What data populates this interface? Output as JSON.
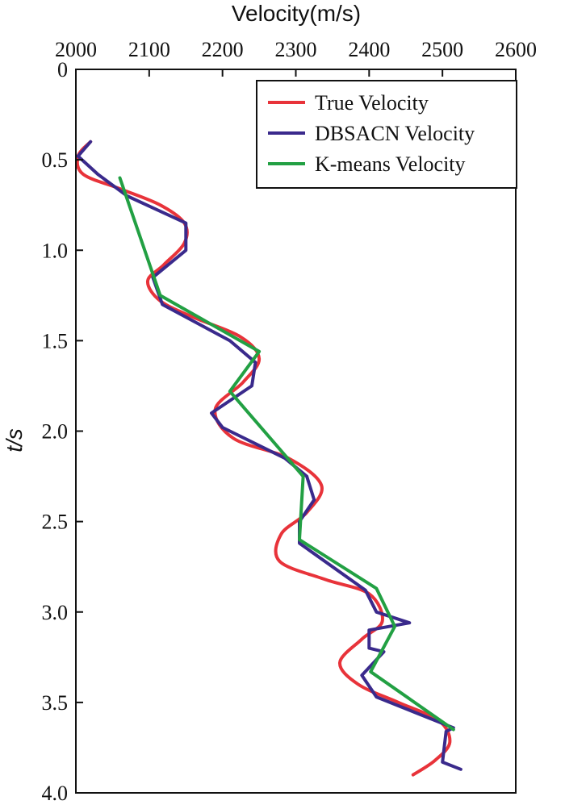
{
  "chart_data": {
    "type": "line",
    "xlabel": "Velocity(m/s)",
    "ylabel": "t/s",
    "xlim": [
      2000,
      2600
    ],
    "ylim": [
      0,
      4.0
    ],
    "y_inverted": true,
    "x_axis_position": "top",
    "x_ticks": [
      2000,
      2100,
      2200,
      2300,
      2400,
      2500,
      2600
    ],
    "x_tick_labels": [
      "2000",
      "2100",
      "2200",
      "2300",
      "2400",
      "2500",
      "2600"
    ],
    "y_ticks": [
      0,
      0.5,
      1.0,
      1.5,
      2.0,
      2.5,
      3.0,
      3.5,
      4.0
    ],
    "y_tick_labels": [
      "0",
      "0.5",
      "1.0",
      "1.5",
      "2.0",
      "2.5",
      "3.0",
      "3.5",
      "4.0"
    ],
    "legend_position": "top-right",
    "series": [
      {
        "name": "True Velocity",
        "color": "#e8333a",
        "smooth": true,
        "points": [
          [
            2020,
            0.4
          ],
          [
            2003,
            0.48
          ],
          [
            2010,
            0.58
          ],
          [
            2060,
            0.66
          ],
          [
            2115,
            0.75
          ],
          [
            2148,
            0.85
          ],
          [
            2148,
            0.96
          ],
          [
            2120,
            1.08
          ],
          [
            2098,
            1.17
          ],
          [
            2115,
            1.28
          ],
          [
            2160,
            1.37
          ],
          [
            2225,
            1.48
          ],
          [
            2250,
            1.6
          ],
          [
            2228,
            1.73
          ],
          [
            2190,
            1.88
          ],
          [
            2215,
            2.04
          ],
          [
            2290,
            2.15
          ],
          [
            2335,
            2.3
          ],
          [
            2315,
            2.45
          ],
          [
            2280,
            2.57
          ],
          [
            2278,
            2.72
          ],
          [
            2340,
            2.82
          ],
          [
            2400,
            2.9
          ],
          [
            2418,
            3.05
          ],
          [
            2390,
            3.15
          ],
          [
            2360,
            3.28
          ],
          [
            2385,
            3.4
          ],
          [
            2440,
            3.5
          ],
          [
            2495,
            3.6
          ],
          [
            2510,
            3.72
          ],
          [
            2490,
            3.82
          ],
          [
            2460,
            3.9
          ]
        ]
      },
      {
        "name": "DBSACN Velocity",
        "color": "#3a2a8c",
        "smooth": false,
        "points": [
          [
            2020,
            0.4
          ],
          [
            2003,
            0.48
          ],
          [
            2030,
            0.58
          ],
          [
            2070,
            0.7
          ],
          [
            2150,
            0.85
          ],
          [
            2150,
            1.0
          ],
          [
            2105,
            1.15
          ],
          [
            2118,
            1.3
          ],
          [
            2210,
            1.5
          ],
          [
            2245,
            1.62
          ],
          [
            2240,
            1.75
          ],
          [
            2185,
            1.9
          ],
          [
            2200,
            1.98
          ],
          [
            2285,
            2.15
          ],
          [
            2315,
            2.25
          ],
          [
            2325,
            2.38
          ],
          [
            2305,
            2.5
          ],
          [
            2305,
            2.62
          ],
          [
            2395,
            2.88
          ],
          [
            2410,
            3.0
          ],
          [
            2455,
            3.06
          ],
          [
            2400,
            3.1
          ],
          [
            2400,
            3.2
          ],
          [
            2420,
            3.22
          ],
          [
            2390,
            3.35
          ],
          [
            2410,
            3.47
          ],
          [
            2490,
            3.6
          ],
          [
            2515,
            3.64
          ],
          [
            2505,
            3.66
          ],
          [
            2500,
            3.83
          ],
          [
            2525,
            3.87
          ]
        ]
      },
      {
        "name": "K-means Velocity",
        "color": "#22a043",
        "smooth": false,
        "points": [
          [
            2060,
            0.6
          ],
          [
            2115,
            1.25
          ],
          [
            2250,
            1.56
          ],
          [
            2210,
            1.78
          ],
          [
            2310,
            2.25
          ],
          [
            2305,
            2.6
          ],
          [
            2410,
            2.87
          ],
          [
            2435,
            3.08
          ],
          [
            2402,
            3.33
          ],
          [
            2515,
            3.65
          ]
        ]
      }
    ]
  }
}
